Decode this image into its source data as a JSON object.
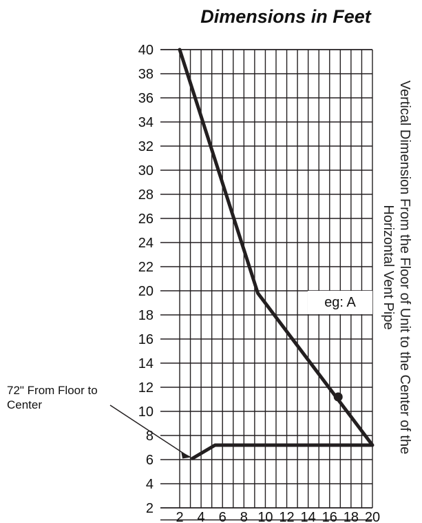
{
  "chart_data": {
    "type": "line",
    "title": "Dimensions in Feet",
    "ylabel": "Vertical Dimension From the Floor of Unit to the Center of the Horizontal Vent Pipe",
    "xlabel": "",
    "xlim": [
      2,
      20
    ],
    "ylim": [
      0,
      40
    ],
    "x_ticks": [
      2,
      4,
      6,
      8,
      10,
      12,
      14,
      16,
      18,
      20
    ],
    "y_ticks": [
      2,
      4,
      6,
      8,
      10,
      12,
      14,
      16,
      18,
      20,
      22,
      24,
      26,
      28,
      30,
      32,
      34,
      36,
      38,
      40
    ],
    "grid": true,
    "series": [
      {
        "values_xy": [
          [
            2,
            40
          ],
          [
            9.3,
            19.8
          ],
          [
            20,
            7.2
          ],
          [
            5.3,
            7.2
          ],
          [
            3.2,
            6.1
          ]
        ]
      }
    ],
    "annotations": [
      {
        "text": "eg: A",
        "point": [
          16.8,
          11.2
        ]
      },
      {
        "text": "72\" From Floor to Center",
        "arrow_to": [
          3.1,
          6.2
        ]
      }
    ],
    "colors": {
      "line": "#231f20",
      "grid": "#231f20"
    }
  }
}
